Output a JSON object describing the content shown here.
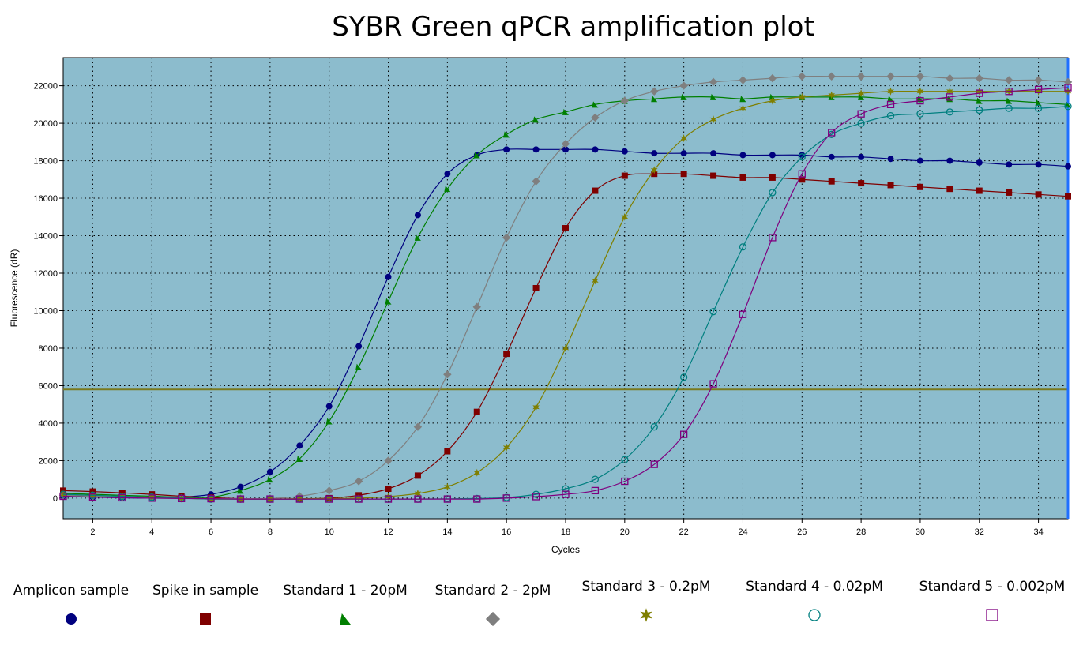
{
  "chart_data": {
    "type": "line",
    "title": "SYBR Green qPCR amplification plot",
    "xlabel": "Cycles",
    "ylabel": "Fluorescence (dR)",
    "xlim": [
      1,
      35
    ],
    "ylim": [
      -1100,
      23500
    ],
    "xticks": [
      2,
      4,
      6,
      8,
      10,
      12,
      14,
      16,
      18,
      20,
      22,
      24,
      26,
      28,
      30,
      32,
      34
    ],
    "yticks": [
      0,
      2000,
      4000,
      6000,
      8000,
      10000,
      12000,
      14000,
      16000,
      18000,
      20000,
      22000
    ],
    "threshold": 5800,
    "grid": true,
    "legend_position": "bottom",
    "x": [
      1,
      2,
      3,
      4,
      5,
      6,
      7,
      8,
      9,
      10,
      11,
      12,
      13,
      14,
      15,
      16,
      17,
      18,
      19,
      20,
      21,
      22,
      23,
      24,
      25,
      26,
      27,
      28,
      29,
      30,
      31,
      32,
      33,
      34,
      35
    ],
    "series": [
      {
        "name": "Amplicon sample",
        "color": "#00007f",
        "marker": "circle",
        "values": [
          100,
          50,
          20,
          0,
          50,
          200,
          600,
          1400,
          2800,
          4900,
          8100,
          11800,
          15100,
          17300,
          18300,
          18600,
          18600,
          18600,
          18600,
          18500,
          18400,
          18400,
          18400,
          18300,
          18300,
          18300,
          18200,
          18200,
          18100,
          18000,
          18000,
          17900,
          17800,
          17800,
          17700
        ]
      },
      {
        "name": "Spike in sample",
        "color": "#7f0000",
        "marker": "square",
        "values": [
          400,
          350,
          280,
          200,
          100,
          30,
          -30,
          -50,
          -50,
          0,
          150,
          500,
          1200,
          2500,
          4600,
          7700,
          11200,
          14400,
          16400,
          17200,
          17300,
          17300,
          17200,
          17100,
          17100,
          17000,
          16900,
          16800,
          16700,
          16600,
          16500,
          16400,
          16300,
          16200,
          16100
        ]
      },
      {
        "name": "Standard 1 - 20pM",
        "color": "#007f00",
        "marker": "triangle",
        "values": [
          250,
          200,
          150,
          100,
          50,
          50,
          400,
          1000,
          2100,
          4100,
          7000,
          10500,
          13900,
          16500,
          18300,
          19400,
          20200,
          20600,
          21000,
          21200,
          21300,
          21400,
          21400,
          21300,
          21400,
          21400,
          21400,
          21400,
          21300,
          21300,
          21300,
          21200,
          21200,
          21100,
          21000
        ]
      },
      {
        "name": "Standard 2 - 2pM",
        "color": "#7f7f7f",
        "marker": "diamond",
        "values": [
          150,
          100,
          50,
          0,
          -20,
          -30,
          -30,
          -20,
          100,
          400,
          900,
          2000,
          3800,
          6600,
          10200,
          13900,
          16900,
          18900,
          20300,
          21200,
          21700,
          22000,
          22200,
          22300,
          22400,
          22500,
          22500,
          22500,
          22500,
          22500,
          22400,
          22400,
          22300,
          22300,
          22200
        ]
      },
      {
        "name": "Standard 3 - 0.2pM",
        "color": "#7f7f00",
        "marker": "star",
        "values": [
          200,
          150,
          100,
          50,
          0,
          -50,
          -50,
          -50,
          -30,
          -20,
          0,
          80,
          250,
          600,
          1350,
          2700,
          4850,
          8000,
          11600,
          15000,
          17500,
          19200,
          20200,
          20800,
          21200,
          21400,
          21500,
          21600,
          21700,
          21700,
          21700,
          21700,
          21700,
          21700,
          21700
        ]
      },
      {
        "name": "Standard 4 - 0.02pM",
        "color": "#007f7f",
        "marker": "circle-open",
        "values": [
          200,
          150,
          100,
          50,
          0,
          -50,
          -50,
          -50,
          -50,
          -50,
          -50,
          -50,
          -50,
          -40,
          -20,
          30,
          200,
          500,
          1000,
          2050,
          3800,
          6450,
          9950,
          13400,
          16300,
          18200,
          19400,
          20000,
          20400,
          20500,
          20600,
          20700,
          20800,
          20800,
          20900
        ]
      },
      {
        "name": "Standard 5 - 0.002pM",
        "color": "#7f007f",
        "marker": "square-open",
        "values": [
          100,
          50,
          20,
          0,
          -20,
          -30,
          -50,
          -50,
          -50,
          -50,
          -50,
          -50,
          -50,
          -50,
          -50,
          0,
          80,
          200,
          400,
          900,
          1800,
          3400,
          6100,
          9800,
          13900,
          17300,
          19500,
          20500,
          21000,
          21200,
          21400,
          21600,
          21700,
          21800,
          21900
        ]
      }
    ]
  }
}
